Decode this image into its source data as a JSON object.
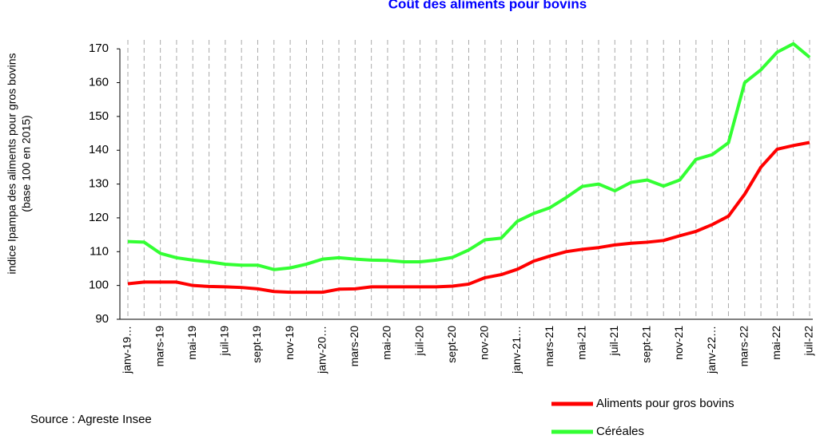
{
  "chart_data": {
    "type": "line",
    "title": "Coût des aliments pour bovins",
    "y_label": [
      "indice Ipampa des aliments pour gros bovins",
      "(base 100 en 2015)"
    ],
    "source": "Source : Agreste Insee",
    "categories": [
      "janv-19…",
      null,
      "mars-19",
      null,
      "mai-19",
      null,
      "juil-19",
      null,
      "sept-19",
      null,
      "nov-19",
      null,
      "janv-20…",
      null,
      "mars-20",
      null,
      "mai-20",
      null,
      "juil-20",
      null,
      "sept-20",
      null,
      "nov-20",
      null,
      "janv-21…",
      null,
      "mars-21",
      null,
      "mai-21",
      null,
      "juil-21",
      null,
      "sept-21",
      null,
      "nov-21",
      null,
      "janv-22…",
      null,
      "mars-22",
      null,
      "mai-22",
      null,
      "juil-22"
    ],
    "series": [
      {
        "name": "Aliments pour gros bovins",
        "color": "#ff0000",
        "values": [
          100.5,
          101,
          101,
          101,
          100,
          99.7,
          99.6,
          99.4,
          99,
          98.2,
          98,
          98,
          98,
          98.9,
          99,
          99.6,
          99.6,
          99.6,
          99.6,
          99.6,
          99.8,
          100.4,
          102.3,
          103.2,
          104.8,
          107.2,
          108.7,
          110,
          110.7,
          111.2,
          112,
          112.5,
          112.8,
          113.3,
          114.7,
          116,
          118,
          120.5,
          127,
          135,
          140.3,
          141.4,
          142.3
        ]
      },
      {
        "name": "Céréales",
        "color": "#33ff33",
        "values": [
          113,
          112.8,
          109.5,
          108.2,
          107.5,
          107,
          106.3,
          106,
          106,
          104.7,
          105.2,
          106.3,
          107.8,
          108.2,
          107.8,
          107.5,
          107.4,
          107,
          107,
          107.5,
          108.3,
          110.5,
          113.5,
          114,
          119,
          121.3,
          123,
          126,
          129.3,
          130,
          128,
          130.5,
          131.2,
          129.4,
          131.2,
          137.3,
          138.7,
          142.2,
          160,
          163.8,
          169,
          171.5,
          167.5
        ]
      }
    ],
    "ylim": [
      90,
      175
    ],
    "yticks": [
      90,
      100,
      110,
      120,
      130,
      140,
      150,
      160,
      170
    ],
    "grid": true
  }
}
